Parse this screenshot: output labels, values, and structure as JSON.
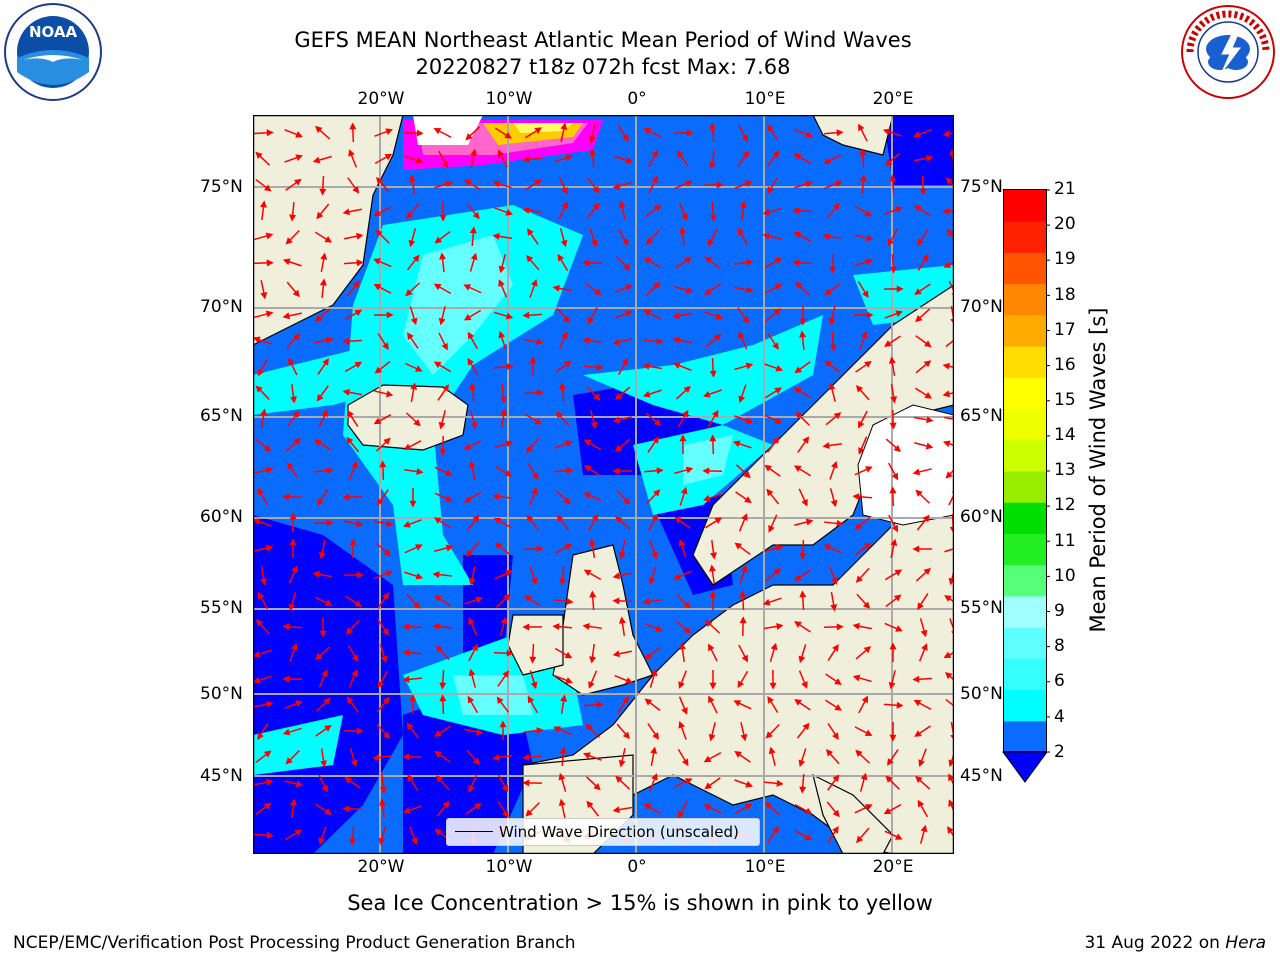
{
  "title": {
    "line1": "GEFS MEAN Northeast Atlantic Mean Period of Wind Waves",
    "line2": "20220827 t18z 072h fcst   Max: 7.68"
  },
  "map": {
    "lat_labels": [
      "75°N",
      "70°N",
      "65°N",
      "60°N",
      "55°N",
      "50°N",
      "45°N"
    ],
    "lon_labels": [
      "20°W",
      "10°W",
      "0°",
      "10°E",
      "20°E"
    ],
    "legend_label": "Wind Wave Direction (unscaled)",
    "ocean_colors": [
      "#0000ff",
      "#0a6cff",
      "#33ffff",
      "#00ffff",
      "#a0ffff"
    ],
    "land_color": "#efefdc",
    "arrow_color": "#ff0000",
    "ice_colors": [
      "#ff00ff",
      "#ff66cc",
      "#ffcc00",
      "#ffff66"
    ]
  },
  "colorbar": {
    "label": "Mean Period of Wind Waves [s]",
    "ticks": [
      "21",
      "20",
      "19",
      "18",
      "17",
      "16",
      "15",
      "14",
      "13",
      "12",
      "11",
      "10",
      "9",
      "8",
      "6",
      "4",
      "2"
    ],
    "colors": [
      "#0a6cff",
      "#00ffff",
      "#33ffff",
      "#5effff",
      "#a0ffff",
      "#55ff77",
      "#22ee22",
      "#00dd00",
      "#99ee00",
      "#ccff00",
      "#eeff00",
      "#ffff00",
      "#ffdd00",
      "#ffaa00",
      "#ff8800",
      "#ff5500",
      "#ff2200",
      "#ff0000"
    ],
    "under_color": "#0000ff"
  },
  "logos": {
    "noaa_text": "NOAA",
    "noaa_ring": "NATIONAL OCEANIC AND ATMOSPHERIC ADMINISTRATION U.S. DEPARTMENT OF COMMERCE",
    "nws_ring": "NATIONAL WEATHER SERVICE"
  },
  "notes": {
    "sea_ice": "Sea Ice Concentration > 15% is shown in pink to yellow",
    "credit": "NCEP/EMC/Verification Post Processing Product Generation Branch",
    "date": "31 Aug 2022 on",
    "machine": "Hera"
  }
}
